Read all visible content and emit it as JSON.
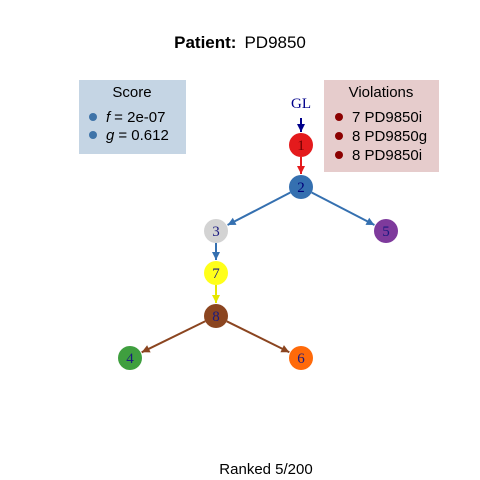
{
  "title": {
    "prefix": "Patient:",
    "patient_id": "PD9850"
  },
  "score_box": {
    "heading": "Score",
    "bullet_color": "#3E73A8",
    "background": "#C5D5E4",
    "f_symbol": "f",
    "f_value": "=  2e-07",
    "g_symbol": "g",
    "g_value": "=  0.612"
  },
  "violations_box": {
    "heading": "Violations",
    "bullet_color": "#8B0000",
    "background": "#E6CCCC",
    "items": [
      "7 PD9850i",
      "8 PD9850g",
      "8 PD9850i"
    ]
  },
  "germline": {
    "label": "GL",
    "color": "#00008B"
  },
  "tree": {
    "nodes": [
      {
        "id": "1",
        "label": "1",
        "color": "#E41A1C",
        "label_color": "#6A0000"
      },
      {
        "id": "2",
        "label": "2",
        "color": "#3570B0",
        "label_color": "#00007A"
      },
      {
        "id": "3",
        "label": "3",
        "color": "#D3D3D3",
        "label_color": "#1A1A80"
      },
      {
        "id": "5",
        "label": "5",
        "color": "#7E3A9C",
        "label_color": "#1A1A80"
      },
      {
        "id": "7",
        "label": "7",
        "color": "#FFFF1A",
        "label_color": "#1A1A80"
      },
      {
        "id": "8",
        "label": "8",
        "color": "#8B4520",
        "label_color": "#1A1A80"
      },
      {
        "id": "4",
        "label": "4",
        "color": "#3F9F3F",
        "label_color": "#1A1A80"
      },
      {
        "id": "6",
        "label": "6",
        "color": "#FF6A0A",
        "label_color": "#1A1A80"
      }
    ],
    "edges": [
      {
        "from": "GL",
        "to": "1",
        "color": "#00008B"
      },
      {
        "from": "1",
        "to": "2",
        "color": "#E41A1C"
      },
      {
        "from": "2",
        "to": "3",
        "color": "#3570B0"
      },
      {
        "from": "2",
        "to": "5",
        "color": "#3570B0"
      },
      {
        "from": "3",
        "to": "7",
        "color": "#3570B0"
      },
      {
        "from": "7",
        "to": "8",
        "color": "#E6E600"
      },
      {
        "from": "8",
        "to": "4",
        "color": "#8B4520"
      },
      {
        "from": "8",
        "to": "6",
        "color": "#8B4520"
      }
    ]
  },
  "footer": {
    "rank_text": "Ranked 5/200"
  }
}
